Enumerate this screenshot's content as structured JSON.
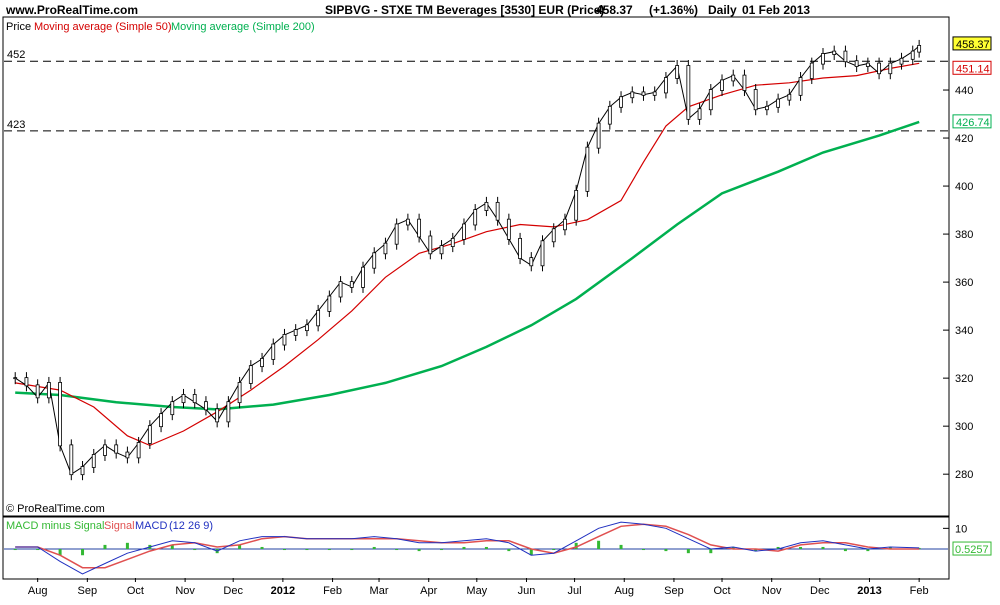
{
  "header": {
    "site": "www.ProRealTime.com",
    "title": "SIPBVG - STXE TM Beverages [3530] EUR (Price)",
    "last_price": "458.37",
    "change": "(+1.36%)",
    "period": "Daily",
    "date": "01 Feb 2013"
  },
  "copyright": "© ProRealTime.com",
  "colors": {
    "price": "#000000",
    "ma50": "#d40000",
    "ma200": "#00b050",
    "macd_hist": "#33b833",
    "signal": "#e05050",
    "macd": "#2030c0",
    "zero_line": "#2040a0",
    "price_badge_bg": "#ffff33"
  },
  "chart_data": [
    {
      "type": "line",
      "panel": "price",
      "legend": [
        "Price",
        "Moving average (Simple 50)",
        "Moving average (Simple 200)"
      ],
      "x_ticks": [
        "Aug",
        "Sep",
        "Oct",
        "Nov",
        "Dec",
        "2012",
        "Feb",
        "Mar",
        "Apr",
        "May",
        "Jun",
        "Jul",
        "Aug",
        "Sep",
        "Oct",
        "Nov",
        "Dec",
        "2013",
        "Feb"
      ],
      "y_ticks": [
        280,
        300,
        320,
        340,
        360,
        380,
        400,
        420,
        440
      ],
      "ylim": [
        263,
        470
      ],
      "h_levels": [
        {
          "label": "452",
          "value": 452
        },
        {
          "label": "423",
          "value": 423
        }
      ],
      "value_badges": [
        {
          "label": "458.37",
          "value": 458.37,
          "series": "Price"
        },
        {
          "label": "451.14",
          "value": 451.14,
          "series": "Moving average (Simple 50)"
        },
        {
          "label": "426.74",
          "value": 426.74,
          "series": "Moving average (Simple 200)"
        }
      ],
      "series": [
        {
          "name": "Price",
          "x": [
            "2011-07-18",
            "2011-07-25",
            "2011-08-01",
            "2011-08-08",
            "2011-08-15",
            "2011-08-22",
            "2011-08-29",
            "2011-09-05",
            "2011-09-12",
            "2011-09-19",
            "2011-09-26",
            "2011-10-03",
            "2011-10-10",
            "2011-10-17",
            "2011-10-24",
            "2011-10-31",
            "2011-11-07",
            "2011-11-14",
            "2011-11-21",
            "2011-11-28",
            "2011-12-05",
            "2011-12-12",
            "2011-12-19",
            "2011-12-26",
            "2012-01-02",
            "2012-01-09",
            "2012-01-16",
            "2012-01-23",
            "2012-01-30",
            "2012-02-06",
            "2012-02-13",
            "2012-02-20",
            "2012-02-27",
            "2012-03-05",
            "2012-03-12",
            "2012-03-19",
            "2012-03-26",
            "2012-04-02",
            "2012-04-09",
            "2012-04-16",
            "2012-04-23",
            "2012-04-30",
            "2012-05-07",
            "2012-05-14",
            "2012-05-21",
            "2012-05-28",
            "2012-06-04",
            "2012-06-11",
            "2012-06-18",
            "2012-06-25",
            "2012-07-02",
            "2012-07-09",
            "2012-07-16",
            "2012-07-23",
            "2012-07-30",
            "2012-08-06",
            "2012-08-13",
            "2012-08-20",
            "2012-08-27",
            "2012-09-03",
            "2012-09-10",
            "2012-09-17",
            "2012-09-24",
            "2012-10-01",
            "2012-10-08",
            "2012-10-15",
            "2012-10-22",
            "2012-10-29",
            "2012-11-05",
            "2012-11-12",
            "2012-11-19",
            "2012-11-26",
            "2012-12-03",
            "2012-12-10",
            "2012-12-17",
            "2012-12-24",
            "2012-12-31",
            "2013-01-07",
            "2013-01-14",
            "2013-01-21",
            "2013-01-28",
            "2013-02-01"
          ],
          "values": [
            320,
            317,
            312,
            318,
            292,
            280,
            283,
            288,
            292,
            289,
            287,
            293,
            300,
            305,
            310,
            313,
            310,
            307,
            302,
            310,
            318,
            325,
            328,
            334,
            338,
            340,
            342,
            348,
            354,
            360,
            358,
            366,
            372,
            376,
            384,
            386,
            379,
            372,
            375,
            378,
            384,
            390,
            393,
            386,
            378,
            370,
            367,
            377,
            382,
            386,
            398,
            416,
            426,
            433,
            437,
            439,
            438,
            439,
            445,
            450,
            428,
            432,
            440,
            444,
            446,
            440,
            432,
            433,
            436,
            438,
            445,
            451,
            455,
            456,
            452,
            450,
            451,
            447,
            451,
            453,
            456,
            458.37
          ]
        },
        {
          "name": "Moving average (Simple 50)",
          "x": [
            "2011-07-18",
            "2011-08-15",
            "2011-09-05",
            "2011-09-26",
            "2011-10-10",
            "2011-10-31",
            "2011-11-21",
            "2011-12-12",
            "2012-01-02",
            "2012-01-23",
            "2012-02-13",
            "2012-03-05",
            "2012-03-26",
            "2012-04-16",
            "2012-05-07",
            "2012-05-28",
            "2012-06-18",
            "2012-07-09",
            "2012-07-30",
            "2012-08-13",
            "2012-08-27",
            "2012-09-10",
            "2012-10-01",
            "2012-10-22",
            "2012-11-12",
            "2012-12-03",
            "2012-12-24",
            "2013-01-14",
            "2013-02-01"
          ],
          "values": [
            318,
            315,
            308,
            296,
            292,
            298,
            306,
            315,
            325,
            336,
            348,
            362,
            372,
            376,
            381,
            384,
            383,
            386,
            394,
            410,
            425,
            433,
            438,
            442,
            443,
            445,
            446,
            449,
            451.14
          ]
        },
        {
          "name": "Moving average (Simple 200)",
          "x": [
            "2011-07-18",
            "2011-08-15",
            "2011-09-19",
            "2011-10-24",
            "2011-11-21",
            "2011-12-26",
            "2012-01-30",
            "2012-03-05",
            "2012-04-09",
            "2012-05-07",
            "2012-06-04",
            "2012-07-02",
            "2012-08-06",
            "2012-09-03",
            "2012-10-01",
            "2012-11-05",
            "2012-12-03",
            "2013-01-07",
            "2013-02-01"
          ],
          "values": [
            314,
            313,
            310,
            308,
            307,
            309,
            313,
            318,
            325,
            333,
            342,
            353,
            370,
            384,
            397,
            406,
            414,
            421,
            426.74
          ]
        }
      ]
    },
    {
      "type": "line",
      "panel": "macd",
      "legend": [
        "MACD minus Signal",
        "Signal",
        "MACD",
        "(12 26 9)"
      ],
      "y_ticks": [
        10
      ],
      "value_badge": "0.5257",
      "last_value": 0.5257,
      "series": [
        {
          "name": "MACD",
          "x": [
            "2011-07-18",
            "2011-08-01",
            "2011-08-15",
            "2011-08-29",
            "2011-09-12",
            "2011-09-26",
            "2011-10-10",
            "2011-10-24",
            "2011-11-07",
            "2011-11-21",
            "2011-12-05",
            "2011-12-19",
            "2012-01-02",
            "2012-01-16",
            "2012-01-30",
            "2012-02-13",
            "2012-02-27",
            "2012-03-12",
            "2012-03-26",
            "2012-04-09",
            "2012-04-23",
            "2012-05-07",
            "2012-05-21",
            "2012-06-04",
            "2012-06-18",
            "2012-07-02",
            "2012-07-16",
            "2012-07-30",
            "2012-08-13",
            "2012-08-27",
            "2012-09-10",
            "2012-09-24",
            "2012-10-08",
            "2012-10-22",
            "2012-11-05",
            "2012-11-19",
            "2012-12-03",
            "2012-12-17",
            "2012-12-31",
            "2013-01-14",
            "2013-02-01"
          ],
          "values": [
            1,
            1,
            -6,
            -12,
            -7,
            -2,
            1,
            4,
            3,
            -1,
            4,
            6,
            6,
            5,
            5,
            5,
            6,
            5,
            3,
            3,
            4,
            5,
            3,
            -3,
            -2,
            4,
            10,
            13,
            12,
            10,
            5,
            0,
            1,
            -1,
            0,
            3,
            4,
            2,
            0,
            1,
            0.5257
          ]
        },
        {
          "name": "Signal",
          "x": [
            "2011-07-18",
            "2011-08-01",
            "2011-08-15",
            "2011-08-29",
            "2011-09-12",
            "2011-09-26",
            "2011-10-10",
            "2011-10-24",
            "2011-11-07",
            "2011-11-21",
            "2011-12-05",
            "2011-12-19",
            "2012-01-02",
            "2012-01-16",
            "2012-01-30",
            "2012-02-13",
            "2012-02-27",
            "2012-03-12",
            "2012-03-26",
            "2012-04-09",
            "2012-04-23",
            "2012-05-07",
            "2012-05-21",
            "2012-06-04",
            "2012-06-18",
            "2012-07-02",
            "2012-07-16",
            "2012-07-30",
            "2012-08-13",
            "2012-08-27",
            "2012-09-10",
            "2012-09-24",
            "2012-10-08",
            "2012-10-22",
            "2012-11-05",
            "2012-11-19",
            "2012-12-03",
            "2012-12-17",
            "2012-12-31",
            "2013-01-14",
            "2013-02-01"
          ],
          "values": [
            1,
            1,
            -3,
            -9,
            -9,
            -5,
            -1,
            2,
            3,
            1,
            2,
            5,
            6,
            5,
            5,
            5,
            5,
            5,
            4,
            3,
            3,
            4,
            4,
            0,
            -2,
            1,
            6,
            11,
            12,
            11,
            7,
            2,
            0,
            0,
            -1,
            2,
            3,
            3,
            1,
            0,
            0
          ]
        }
      ]
    }
  ]
}
